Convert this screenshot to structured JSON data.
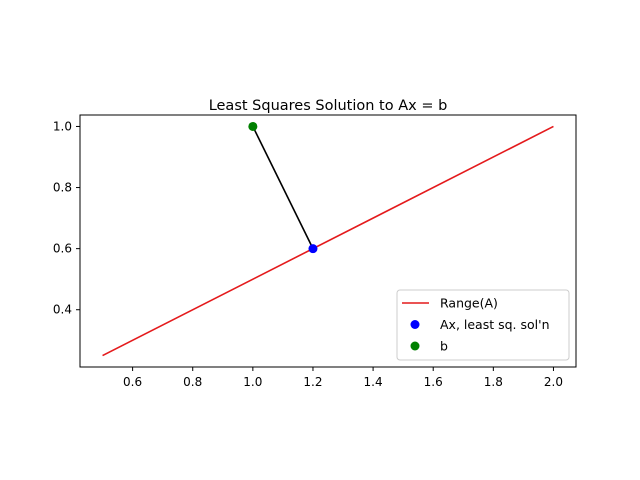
{
  "chart_data": {
    "type": "line",
    "title": "Least Squares Solution to Ax = b",
    "xlabel": "",
    "ylabel": "",
    "xlim": [
      0.425,
      2.075
    ],
    "ylim": [
      0.2125,
      1.0375
    ],
    "xticks": [
      0.6,
      0.8,
      1.0,
      1.2,
      1.4,
      1.6,
      1.8,
      2.0
    ],
    "xtick_labels": [
      "0.6",
      "0.8",
      "1.0",
      "1.2",
      "1.4",
      "1.6",
      "1.8",
      "2.0"
    ],
    "yticks": [
      0.4,
      0.6,
      0.8,
      1.0
    ],
    "ytick_labels": [
      "0.4",
      "0.6",
      "0.8",
      "1.0"
    ],
    "grid": false,
    "legend_position": "lower-right",
    "series": [
      {
        "name": "Range(A)",
        "kind": "line",
        "color": "#e41a1c",
        "x": [
          0.5,
          2.0
        ],
        "y": [
          0.25,
          1.0
        ]
      },
      {
        "name": "",
        "kind": "line",
        "color": "#000000",
        "x": [
          1.0,
          1.2
        ],
        "y": [
          1.0,
          0.6
        ]
      },
      {
        "name": "Ax, least sq. sol'n",
        "kind": "point",
        "color": "#0000ff",
        "x": [
          1.2
        ],
        "y": [
          0.6
        ]
      },
      {
        "name": "b",
        "kind": "point",
        "color": "#008000",
        "x": [
          1.0
        ],
        "y": [
          1.0
        ]
      }
    ]
  }
}
